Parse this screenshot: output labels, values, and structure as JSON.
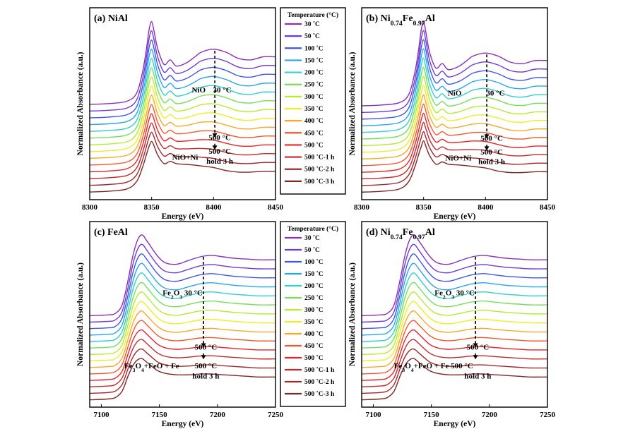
{
  "series_colors": [
    "#8b2fb8",
    "#6e3ad8",
    "#3f55e8",
    "#28a6ec",
    "#2fd0ce",
    "#74e05a",
    "#b6ec2e",
    "#f0ec26",
    "#f8a826",
    "#f2582a",
    "#e5242a",
    "#c22a2e",
    "#a2282b",
    "#7e2626"
  ],
  "y_axis_label": "Normalized Absorbance (a.u.)",
  "x_axis_label": "Energy (eV)",
  "legend_top": {
    "title": "Temperature (°C)",
    "entries": [
      "30 ˚C",
      "50 ˚C",
      "100 ˚C",
      "150 ˚C",
      "200 ˚C",
      "250 ˚C",
      "300 ˚C",
      "350 ˚C",
      "400 ˚C",
      "450 ˚C",
      "500 ˚C",
      "500 ˚C-1 h",
      "500 ˚C-2 h",
      "500 ˚C-3 h"
    ]
  },
  "legend_bottom": {
    "title": "Temperature (°C)",
    "entries": [
      "30 ˚C",
      "50 ˚C",
      "100 ˚C",
      "150 ˚C",
      "200 ˚C",
      "250 ˚C",
      "300 ˚C",
      "350 ˚C",
      "400 ˚C",
      "450 ˚C",
      "500 ˚C",
      "500 ˚C-1 h",
      "500 ˚C-2 h",
      "500 ˚C-3 h"
    ]
  },
  "chart_data": [
    {
      "type": "line",
      "panel": "a",
      "title": "(a) NiAl",
      "xlabel": "Energy (eV)",
      "ylabel": "Normalized Absorbance (a.u.)",
      "xlim": [
        8300,
        8450
      ],
      "xticks": [
        8300,
        8350,
        8400,
        8450
      ],
      "yticks_shown": false,
      "series_names": [
        "30 ˚C",
        "50 ˚C",
        "100 ˚C",
        "150 ˚C",
        "200 ˚C",
        "250 ˚C",
        "300 ˚C",
        "350 ˚C",
        "400 ˚C",
        "450 ˚C",
        "500 ˚C",
        "500 ˚C-1 h",
        "500 ˚C-2 h",
        "500 ˚C-3 h"
      ],
      "curve_x": [
        8300,
        8315,
        8330,
        8338,
        8343,
        8346,
        8348,
        8350,
        8352,
        8355,
        8360,
        8365,
        8370,
        8378,
        8385,
        8390,
        8400,
        8410,
        8420,
        8430,
        8440,
        8450
      ],
      "series_top": [
        0.1,
        0.11,
        0.14,
        0.25,
        0.55,
        0.85,
        1.08,
        1.18,
        1.05,
        0.82,
        0.62,
        0.68,
        0.6,
        0.64,
        0.72,
        0.78,
        0.82,
        0.78,
        0.7,
        0.68,
        0.72,
        0.72
      ],
      "series_bottom": [
        0.1,
        0.11,
        0.14,
        0.24,
        0.44,
        0.6,
        0.7,
        0.76,
        0.7,
        0.58,
        0.47,
        0.5,
        0.47,
        0.46,
        0.45,
        0.44,
        0.42,
        0.38,
        0.36,
        0.36,
        0.37,
        0.37
      ],
      "offset_step": 0.088,
      "annotations": [
        {
          "label": "NiO",
          "x": 8388,
          "y": 1.4
        },
        {
          "label": "30 °C",
          "x": 8407,
          "y": 1.4
        },
        {
          "label": "500 °C",
          "x": 8405,
          "y": 0.78
        },
        {
          "label": "NiO+Ni",
          "x": 8377,
          "y": 0.52
        },
        {
          "label": "500 °C",
          "x": 8405,
          "y": 0.6
        },
        {
          "label": "hold 3 h",
          "x": 8405,
          "y": 0.47
        }
      ],
      "arrow_x": 8401
    },
    {
      "type": "line",
      "panel": "b",
      "title_main": "Ni",
      "title_sub1": "0.74",
      "title_mid": "Fe",
      "title_sub2": "0.97",
      "title_end": "Al",
      "title_prefix": "(b) ",
      "xlabel": "Energy (eV)",
      "ylabel": "Normalized Absorbance (a.u.)",
      "xlim": [
        8300,
        8450
      ],
      "xticks": [
        8300,
        8350,
        8400,
        8450
      ],
      "yticks_shown": false,
      "series_names": [
        "30 ˚C",
        "50 ˚C",
        "100 ˚C",
        "150 ˚C",
        "200 ˚C",
        "250 ˚C",
        "300 ˚C",
        "350 ˚C",
        "400 ˚C",
        "450 ˚C",
        "500 ˚C",
        "500 ˚C-1 h",
        "500 ˚C-2 h",
        "500 ˚C-3 h"
      ],
      "curve_x": [
        8300,
        8315,
        8330,
        8338,
        8343,
        8346,
        8348,
        8350,
        8352,
        8355,
        8360,
        8365,
        8370,
        8378,
        8385,
        8390,
        8400,
        8410,
        8420,
        8430,
        8440,
        8450
      ],
      "series_top": [
        0.1,
        0.11,
        0.14,
        0.25,
        0.55,
        0.85,
        1.1,
        1.22,
        1.06,
        0.8,
        0.6,
        0.66,
        0.58,
        0.62,
        0.7,
        0.76,
        0.8,
        0.76,
        0.68,
        0.66,
        0.7,
        0.7
      ],
      "series_bottom": [
        0.1,
        0.11,
        0.14,
        0.24,
        0.44,
        0.6,
        0.7,
        0.78,
        0.7,
        0.58,
        0.47,
        0.5,
        0.47,
        0.46,
        0.45,
        0.44,
        0.42,
        0.38,
        0.36,
        0.36,
        0.37,
        0.37
      ],
      "offset_step": 0.088,
      "annotations": [
        {
          "label": "NiO",
          "x": 8375,
          "y": 1.38
        },
        {
          "label": "30 °C",
          "x": 8408,
          "y": 1.38
        },
        {
          "label": "500 °C",
          "x": 8405,
          "y": 0.78
        },
        {
          "label": "NiO+Ni",
          "x": 8378,
          "y": 0.52
        },
        {
          "label": "500 °C",
          "x": 8405,
          "y": 0.6
        },
        {
          "label": "hold 3 h",
          "x": 8405,
          "y": 0.47
        }
      ],
      "arrow_x": 8401
    },
    {
      "type": "line",
      "panel": "c",
      "title": "(c) FeAl",
      "xlabel": "Energy (eV)",
      "ylabel": "Normalized Absorbance (a.u.)",
      "xlim": [
        7090,
        7250
      ],
      "xticks": [
        7100,
        7150,
        7200,
        7250
      ],
      "yticks_shown": false,
      "series_names": [
        "30 ˚C",
        "50 ˚C",
        "100 ˚C",
        "150 ˚C",
        "200 ˚C",
        "250 ˚C",
        "300 ˚C",
        "350 ˚C",
        "400 ˚C",
        "450 ˚C",
        "500 ˚C",
        "500 ˚C-1 h",
        "500 ˚C-2 h",
        "500 ˚C-3 h"
      ],
      "curve_x": [
        7090,
        7105,
        7112,
        7118,
        7123,
        7127,
        7131,
        7135,
        7140,
        7148,
        7155,
        7165,
        7175,
        7185,
        7195,
        7205,
        7215,
        7225,
        7235,
        7250
      ],
      "series_top": [
        0.1,
        0.11,
        0.13,
        0.25,
        0.58,
        0.9,
        1.12,
        1.2,
        1.1,
        0.92,
        0.82,
        0.8,
        0.85,
        0.9,
        0.92,
        0.9,
        0.88,
        0.87,
        0.86,
        0.86
      ],
      "series_bottom": [
        0.1,
        0.11,
        0.13,
        0.22,
        0.42,
        0.56,
        0.64,
        0.66,
        0.6,
        0.5,
        0.46,
        0.44,
        0.44,
        0.45,
        0.45,
        0.44,
        0.43,
        0.42,
        0.41,
        0.41
      ],
      "offset_step": 0.088,
      "annotations": [
        {
          "label_main": "Fe",
          "label_sub": "2",
          "label_mid": "O",
          "label_sub2": "3",
          "label_end": " 30 °C",
          "x": 7165,
          "y": 1.52
        },
        {
          "label": "500 °C",
          "x": 7190,
          "y": 0.78
        },
        {
          "label_main": "Fe",
          "label_sub": "3",
          "label_mid": "O",
          "label_sub2": "4",
          "label_end": "+FeO + Fe",
          "x": 7132,
          "y": 0.53
        },
        {
          "label": "500 °C",
          "x": 7190,
          "y": 0.53
        },
        {
          "label": "hold 3 h",
          "x": 7190,
          "y": 0.39
        }
      ],
      "arrow_x": 7188
    },
    {
      "type": "line",
      "panel": "d",
      "title_main": "Ni",
      "title_sub1": "0.74",
      "title_mid": "Fe",
      "title_sub2": "0.97",
      "title_end": "Al",
      "title_prefix": "(d) ",
      "xlabel": "Energy (eV)",
      "ylabel": "Normalized Absorbance (a.u.)",
      "xlim": [
        7090,
        7250
      ],
      "xticks": [
        7100,
        7150,
        7200,
        7250
      ],
      "yticks_shown": false,
      "series_names": [
        "30 ˚C",
        "50 ˚C",
        "100 ˚C",
        "150 ˚C",
        "200 ˚C",
        "250 ˚C",
        "300 ˚C",
        "350 ˚C",
        "400 ˚C",
        "450 ˚C",
        "500 ˚C",
        "500 ˚C-1 h",
        "500 ˚C-2 h",
        "500 ˚C-3 h"
      ],
      "curve_x": [
        7090,
        7105,
        7112,
        7118,
        7123,
        7127,
        7131,
        7135,
        7140,
        7148,
        7155,
        7165,
        7175,
        7185,
        7195,
        7205,
        7215,
        7225,
        7235,
        7250
      ],
      "series_top": [
        0.1,
        0.11,
        0.13,
        0.25,
        0.58,
        0.9,
        1.12,
        1.2,
        1.1,
        0.92,
        0.82,
        0.8,
        0.85,
        0.9,
        0.92,
        0.9,
        0.88,
        0.87,
        0.86,
        0.86
      ],
      "series_bottom": [
        0.1,
        0.11,
        0.13,
        0.22,
        0.42,
        0.56,
        0.64,
        0.66,
        0.6,
        0.5,
        0.46,
        0.44,
        0.44,
        0.45,
        0.45,
        0.44,
        0.43,
        0.42,
        0.41,
        0.41
      ],
      "offset_step": 0.088,
      "annotations": [
        {
          "label_main": "Fe",
          "label_sub": "2",
          "label_mid": "O",
          "label_sub2": "3",
          "label_end": " 30 °C",
          "x": 7165,
          "y": 1.52
        },
        {
          "label": "500 °C",
          "x": 7190,
          "y": 0.78
        },
        {
          "label_main": "Fe",
          "label_sub": "3",
          "label_mid": "O",
          "label_sub2": "4",
          "label_end": "+FeO + Fe 500 °C",
          "x": 7130,
          "y": 0.53
        },
        {
          "label": "hold 3 h",
          "x": 7190,
          "y": 0.39
        }
      ],
      "arrow_x": 7188
    }
  ]
}
